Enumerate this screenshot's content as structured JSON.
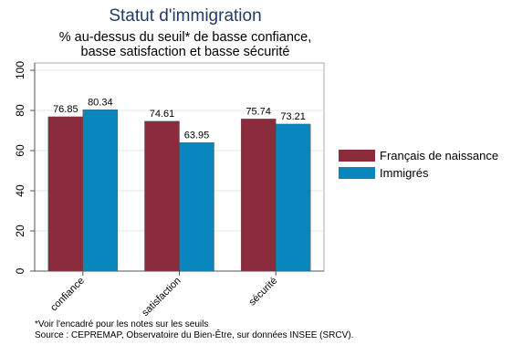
{
  "chart_data": {
    "type": "bar",
    "title": "Statut d'immigration",
    "subtitle_lines": [
      "% au-dessus du seuil* de basse confiance,",
      "basse satisfaction et basse sécurité"
    ],
    "categories": [
      "confiance",
      "satisfaction",
      "sécurité"
    ],
    "series": [
      {
        "name": "Français de naissance",
        "color": "#8b2c3c",
        "values": [
          76.85,
          74.61,
          75.74
        ],
        "labels": [
          "76.85",
          "74.61",
          "75.74"
        ]
      },
      {
        "name": "Immigrés",
        "color": "#0a86bf",
        "values": [
          80.34,
          63.95,
          73.21
        ],
        "labels": [
          "80.34",
          "63.95",
          "73.21"
        ]
      }
    ],
    "ylim": [
      0,
      100
    ],
    "yticks": [
      0,
      20,
      40,
      60,
      80,
      100
    ],
    "grid": true,
    "legend_position": "right"
  },
  "notes": [
    "*Voir l'encadré pour les notes sur les seuils",
    "Source : CEPREMAP, Observatoire du Bien-Être, sur données INSEE (SRCV)."
  ]
}
